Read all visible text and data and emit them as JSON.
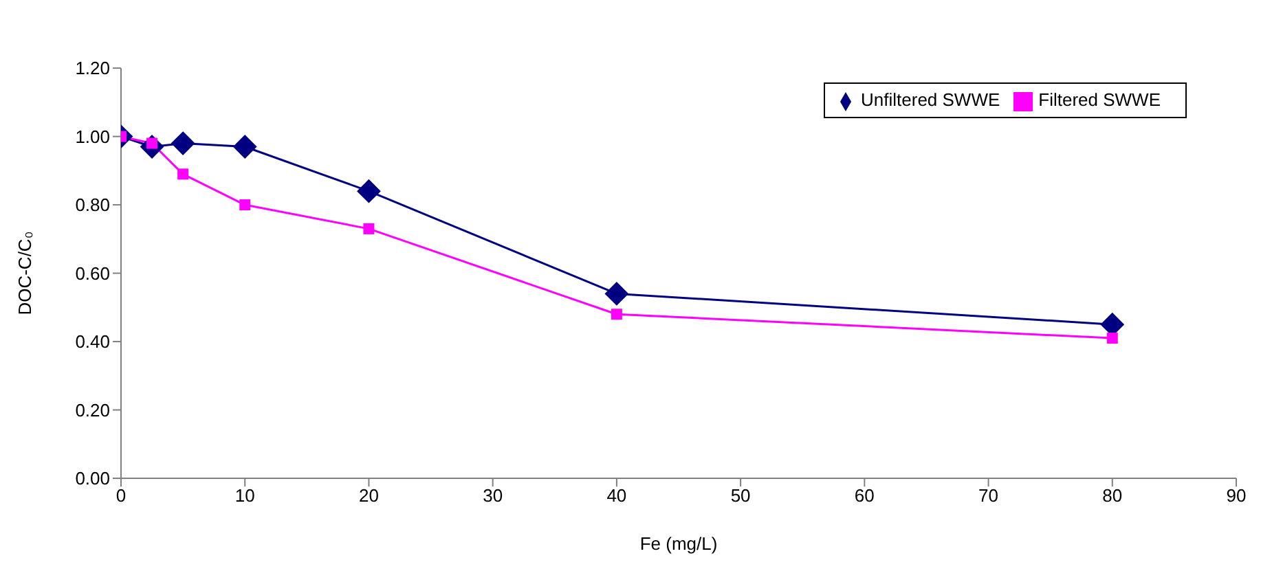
{
  "chart_data": {
    "type": "line",
    "xlabel": "Fe (mg/L)",
    "ylabel": "DOC-C/C₀",
    "x": [
      0,
      2.5,
      5,
      10,
      20,
      40,
      80
    ],
    "series": [
      {
        "name": "Unfiltered SWWE",
        "color": "#000080",
        "marker": "diamond",
        "values": [
          1.0,
          0.97,
          0.98,
          0.97,
          0.84,
          0.54,
          0.45
        ]
      },
      {
        "name": "Filtered SWWE",
        "color": "#ff00ff",
        "marker": "square",
        "values": [
          1.0,
          0.98,
          0.89,
          0.8,
          0.73,
          0.48,
          0.41
        ]
      }
    ],
    "xlim": [
      0,
      90
    ],
    "xticks": [
      0,
      10,
      20,
      30,
      40,
      50,
      60,
      70,
      80,
      90
    ],
    "ylim": [
      0,
      1.2
    ],
    "yticks": [
      {
        "value": 0,
        "label": "0.00"
      },
      {
        "value": 0.2,
        "label": "0.20"
      },
      {
        "value": 0.4,
        "label": "0.40"
      },
      {
        "value": 0.6,
        "label": "0.60"
      },
      {
        "value": 0.8,
        "label": "0.80"
      },
      {
        "value": 1,
        "label": "1.00"
      },
      {
        "value": 1.2,
        "label": "1.20"
      }
    ],
    "grid": false,
    "legend": "top right",
    "line_style": "solid"
  }
}
